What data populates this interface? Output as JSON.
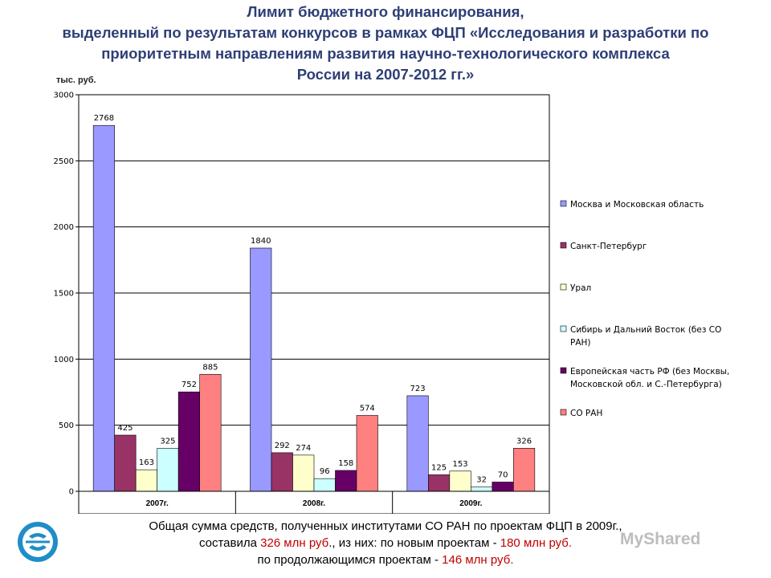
{
  "title_lines": [
    "Лимит бюджетного финансирования,",
    "выделенный по результатам  конкурсов в рамках ФЦП «Исследования и разработки по",
    "приоритетным направлениям развития научно-технологического комплекса",
    "России на 2007-2012 гг.»"
  ],
  "unit_label": "тыс. руб.",
  "chart_data": {
    "type": "bar",
    "title": "",
    "xlabel": "",
    "ylabel": "тыс. руб.",
    "ylim": [
      0,
      3000
    ],
    "yticks": [
      "0",
      "500",
      "1000",
      "1500",
      "2000",
      "2500",
      "3000"
    ],
    "grid": true,
    "legend_position": "right",
    "categories": [
      "2007г.",
      "2008г.",
      "2009г."
    ],
    "series": [
      {
        "name": "Москва и Московская область",
        "color": "#9999ff",
        "values": [
          2768,
          1840,
          723
        ]
      },
      {
        "name": "Санкт-Петербург",
        "color": "#993366",
        "values": [
          425,
          292,
          125
        ]
      },
      {
        "name": "Урал",
        "color": "#ffffcc",
        "values": [
          163,
          274,
          153
        ]
      },
      {
        "name": "Сибирь и Дальний Восток (без СО РАН)",
        "color": "#ccffff",
        "values": [
          325,
          96,
          32
        ]
      },
      {
        "name": "Европейская часть РФ (без Москвы, Московской обл. и С.-Петербурга)",
        "color": "#660066",
        "values": [
          752,
          158,
          70
        ]
      },
      {
        "name": "СО РАН",
        "color": "#ff8080",
        "values": [
          885,
          574,
          326
        ]
      }
    ],
    "data_labels": [
      [
        "2768",
        "1840",
        "723"
      ],
      [
        "425",
        "292",
        "125"
      ],
      [
        "163",
        "274",
        "153"
      ],
      [
        "325",
        "96",
        "32"
      ],
      [
        "752",
        "158",
        "70"
      ],
      [
        "885",
        "574",
        "326"
      ]
    ],
    "legend_lines": [
      [
        "Москва и Московская область"
      ],
      [
        "Санкт-Петербург"
      ],
      [
        "Урал"
      ],
      [
        "Сибирь и Дальний Восток (без СО",
        "РАН)"
      ],
      [
        "Европейская часть РФ (без Москвы,",
        "Московской обл. и С.-Петербурга)"
      ],
      [
        "СО РАН"
      ]
    ]
  },
  "footer": {
    "line1": "Общая сумма средств, полученных институтами СО РАН по проектам ФЦП в 2009г.,",
    "line2_a": "составила ",
    "line2_b": "326 млн руб",
    "line2_c": "., из них: по новым проектам  - ",
    "line2_d": "180 млн руб.",
    "line3_a": "по продолжающимся проектам - ",
    "line3_b": "146 млн руб."
  },
  "watermark": "MyShared",
  "colors": {
    "title": "#2e3f76",
    "highlight": "#c00000"
  }
}
